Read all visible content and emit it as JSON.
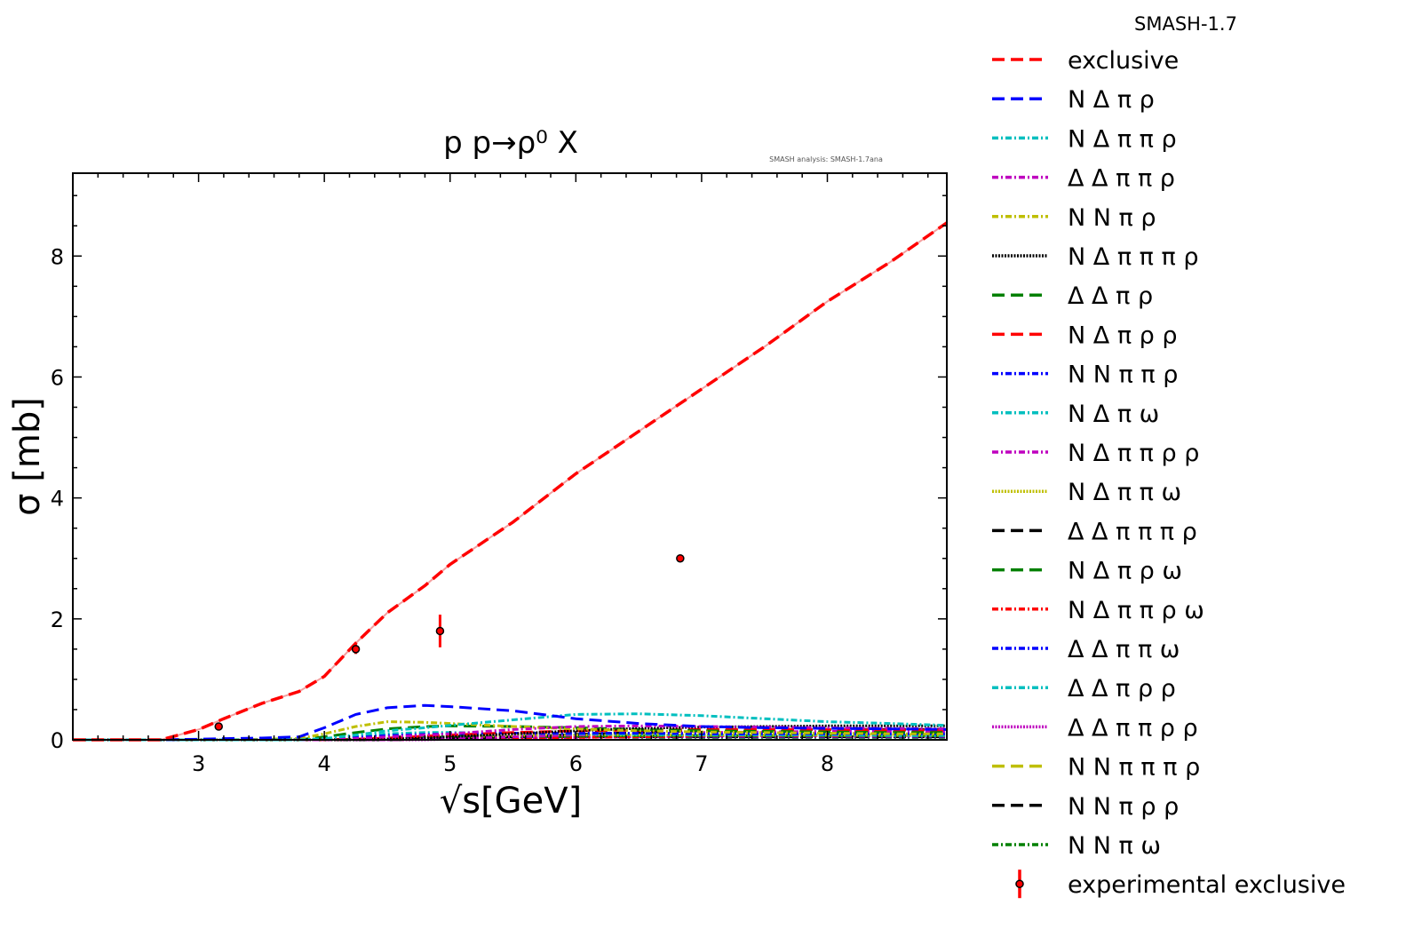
{
  "chart_data": {
    "type": "line",
    "title": "p p→ρ⁰ X",
    "annotation": "SMASH analysis: SMASH-1.7ana",
    "xlabel": "√s[GeV]",
    "ylabel": "σ [mb]",
    "xlim": [
      2.0,
      8.95
    ],
    "ylim": [
      0,
      9.37
    ],
    "xticks": [
      3,
      4,
      5,
      6,
      7,
      8
    ],
    "yticks": [
      0,
      2,
      4,
      6,
      8
    ],
    "grid": false,
    "legend_title": "SMASH-1.7",
    "legend_placement": "outside-right",
    "x": [
      2.0,
      2.7,
      3.0,
      3.2,
      3.5,
      3.8,
      4.0,
      4.25,
      4.5,
      4.8,
      5.0,
      5.5,
      6.0,
      6.5,
      7.0,
      7.5,
      8.0,
      8.5,
      8.95
    ],
    "series": [
      {
        "name": "exclusive",
        "color": "#ff0000",
        "dash": "dashed",
        "values": [
          0,
          0,
          0.17,
          0.35,
          0.6,
          0.8,
          1.05,
          1.6,
          2.1,
          2.55,
          2.9,
          3.6,
          4.4,
          5.1,
          5.8,
          6.5,
          7.25,
          7.9,
          8.55
        ]
      },
      {
        "name": "N Δ π ρ",
        "color": "#0000ff",
        "dash": "dashed",
        "values": [
          0,
          0,
          0.01,
          0.02,
          0.03,
          0.05,
          0.2,
          0.42,
          0.53,
          0.57,
          0.55,
          0.48,
          0.35,
          0.27,
          0.22,
          0.2,
          0.19,
          0.18,
          0.17
        ]
      },
      {
        "name": "N Δ π π ρ",
        "color": "#00bfbf",
        "dash": "dashdot",
        "values": [
          0,
          0,
          0,
          0,
          0,
          0,
          0.02,
          0.08,
          0.15,
          0.2,
          0.24,
          0.33,
          0.42,
          0.43,
          0.4,
          0.35,
          0.3,
          0.27,
          0.24
        ]
      },
      {
        "name": "Δ Δ π π ρ",
        "color": "#bf00bf",
        "dash": "dashdot",
        "values": [
          0,
          0,
          0,
          0,
          0,
          0,
          0,
          0.02,
          0.05,
          0.08,
          0.1,
          0.17,
          0.22,
          0.23,
          0.22,
          0.21,
          0.2,
          0.19,
          0.18
        ]
      },
      {
        "name": "N N π ρ",
        "color": "#bfbf00",
        "dash": "dashdot",
        "values": [
          0,
          0,
          0,
          0,
          0.01,
          0.02,
          0.1,
          0.22,
          0.3,
          0.29,
          0.27,
          0.22,
          0.18,
          0.15,
          0.13,
          0.12,
          0.11,
          0.1,
          0.1
        ]
      },
      {
        "name": "N Δ π π π ρ",
        "color": "#000000",
        "dash": "dotted",
        "values": [
          0,
          0,
          0,
          0,
          0,
          0,
          0,
          0,
          0.01,
          0.03,
          0.05,
          0.1,
          0.15,
          0.19,
          0.21,
          0.22,
          0.23,
          0.23,
          0.23
        ]
      },
      {
        "name": "Δ Δ π ρ",
        "color": "#008000",
        "dash": "dashed",
        "values": [
          0,
          0,
          0,
          0,
          0,
          0,
          0.05,
          0.12,
          0.18,
          0.22,
          0.23,
          0.22,
          0.2,
          0.17,
          0.15,
          0.14,
          0.13,
          0.12,
          0.12
        ]
      },
      {
        "name": "N Δ π ρ ρ",
        "color": "#ff0000",
        "dash": "dashed",
        "values": [
          0,
          0,
          0,
          0,
          0,
          0,
          0,
          0.01,
          0.03,
          0.06,
          0.08,
          0.12,
          0.15,
          0.16,
          0.17,
          0.17,
          0.17,
          0.16,
          0.16
        ]
      },
      {
        "name": "N N π π ρ",
        "color": "#0000ff",
        "dash": "dashdot",
        "values": [
          0,
          0,
          0,
          0,
          0,
          0,
          0.01,
          0.04,
          0.07,
          0.09,
          0.1,
          0.11,
          0.11,
          0.11,
          0.1,
          0.1,
          0.1,
          0.1,
          0.1
        ]
      },
      {
        "name": "N Δ π ω",
        "color": "#00bfbf",
        "dash": "dashdot",
        "values": [
          0,
          0,
          0,
          0,
          0,
          0,
          0.02,
          0.06,
          0.1,
          0.12,
          0.12,
          0.11,
          0.1,
          0.09,
          0.08,
          0.08,
          0.08,
          0.07,
          0.07
        ]
      },
      {
        "name": "N Δ π π ρ ρ",
        "color": "#bf00bf",
        "dash": "dashdot",
        "values": [
          0,
          0,
          0,
          0,
          0,
          0,
          0,
          0,
          0,
          0.01,
          0.02,
          0.05,
          0.08,
          0.1,
          0.12,
          0.13,
          0.14,
          0.14,
          0.14
        ]
      },
      {
        "name": "N Δ π π ω",
        "color": "#bfbf00",
        "dash": "dotted",
        "values": [
          0,
          0,
          0,
          0,
          0,
          0,
          0,
          0.01,
          0.02,
          0.04,
          0.05,
          0.07,
          0.08,
          0.08,
          0.08,
          0.08,
          0.08,
          0.08,
          0.08
        ]
      },
      {
        "name": "Δ Δ π π π ρ",
        "color": "#000000",
        "dash": "dashed",
        "values": [
          0,
          0,
          0,
          0,
          0,
          0,
          0,
          0,
          0,
          0.01,
          0.02,
          0.05,
          0.09,
          0.12,
          0.15,
          0.16,
          0.17,
          0.17,
          0.17
        ]
      },
      {
        "name": "N Δ π ρ ω",
        "color": "#008000",
        "dash": "dashed",
        "values": [
          0,
          0,
          0,
          0,
          0,
          0,
          0,
          0,
          0.01,
          0.02,
          0.03,
          0.05,
          0.06,
          0.07,
          0.07,
          0.07,
          0.07,
          0.07,
          0.07
        ]
      },
      {
        "name": "N Δ π π ρ ω",
        "color": "#ff0000",
        "dash": "dashdot",
        "values": [
          0,
          0,
          0,
          0,
          0,
          0,
          0,
          0,
          0,
          0.01,
          0.01,
          0.03,
          0.04,
          0.05,
          0.06,
          0.06,
          0.06,
          0.06,
          0.06
        ]
      },
      {
        "name": "Δ Δ π π ω",
        "color": "#0000ff",
        "dash": "dashdot",
        "values": [
          0,
          0,
          0,
          0,
          0,
          0,
          0,
          0,
          0.01,
          0.02,
          0.03,
          0.04,
          0.05,
          0.05,
          0.05,
          0.05,
          0.05,
          0.05,
          0.05
        ]
      },
      {
        "name": "Δ Δ π ρ ρ",
        "color": "#00bfbf",
        "dash": "dashdot",
        "values": [
          0,
          0,
          0,
          0,
          0,
          0,
          0,
          0,
          0.01,
          0.02,
          0.03,
          0.05,
          0.06,
          0.07,
          0.07,
          0.07,
          0.07,
          0.07,
          0.07
        ]
      },
      {
        "name": "Δ Δ π π ρ ρ",
        "color": "#bf00bf",
        "dash": "dotted",
        "values": [
          0,
          0,
          0,
          0,
          0,
          0,
          0,
          0,
          0,
          0,
          0.01,
          0.02,
          0.04,
          0.05,
          0.06,
          0.07,
          0.07,
          0.07,
          0.07
        ]
      },
      {
        "name": "N N π π π ρ",
        "color": "#bfbf00",
        "dash": "dashed",
        "values": [
          0,
          0,
          0,
          0,
          0,
          0,
          0,
          0,
          0.01,
          0.02,
          0.03,
          0.05,
          0.06,
          0.07,
          0.07,
          0.07,
          0.07,
          0.07,
          0.07
        ]
      },
      {
        "name": "N N π ρ ρ",
        "color": "#000000",
        "dash": "dashed",
        "values": [
          0,
          0,
          0,
          0,
          0,
          0,
          0,
          0.01,
          0.02,
          0.03,
          0.04,
          0.05,
          0.05,
          0.05,
          0.05,
          0.05,
          0.05,
          0.05,
          0.05
        ]
      },
      {
        "name": "N N π ω",
        "color": "#008000",
        "dash": "dashdot",
        "values": [
          0,
          0,
          0,
          0,
          0,
          0,
          0.01,
          0.03,
          0.05,
          0.06,
          0.06,
          0.05,
          0.05,
          0.04,
          0.04,
          0.04,
          0.04,
          0.04,
          0.04
        ]
      }
    ],
    "experimental": {
      "name": "experimental exclusive",
      "color": "#ff0000",
      "points": [
        {
          "x": 3.16,
          "y": 0.22,
          "err": 0.03
        },
        {
          "x": 4.25,
          "y": 1.5,
          "err": 0.08
        },
        {
          "x": 4.92,
          "y": 1.8,
          "err": 0.27
        },
        {
          "x": 6.83,
          "y": 3.0,
          "err": 0.06
        }
      ]
    }
  }
}
